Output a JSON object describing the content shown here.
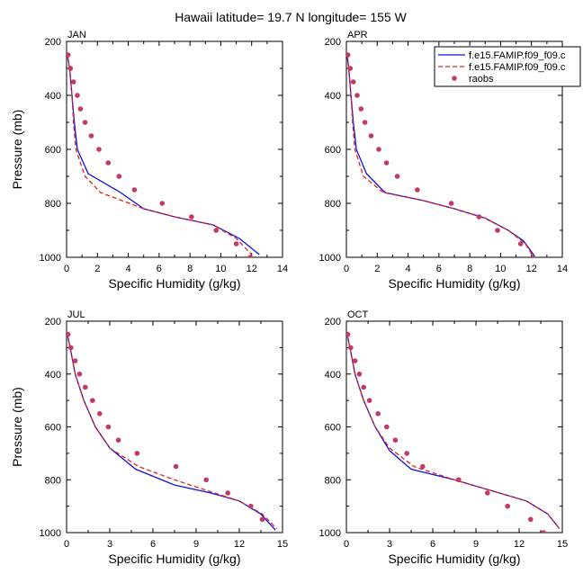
{
  "title": "Hawaii  latitude= 19.7 N longitude= 155 W",
  "legend": {
    "placement": "top-right of APR panel",
    "entries": [
      {
        "label": "f.e15.FAMIP.f09_f09.c",
        "style": "solid",
        "color": "#1010e0"
      },
      {
        "label": "f.e15.FAMIP.f09_f09.c",
        "style": "dashed",
        "color": "#e0241a"
      },
      {
        "label": "raobs",
        "style": "marker",
        "color": "#c2386a"
      }
    ]
  },
  "chart_data": [
    {
      "type": "line",
      "panel_label": "JAN",
      "xlabel": "Specific Humidity (g/kg)",
      "ylabel": "Pressure (mb)",
      "xlim": [
        0,
        14
      ],
      "ylim": [
        1000,
        200
      ],
      "y_inverted": true,
      "xticks": [
        "0",
        "2",
        "4",
        "6",
        "8",
        "10",
        "12",
        "14"
      ],
      "yticks": [
        "200",
        "400",
        "600",
        "800",
        "1000"
      ],
      "series": [
        {
          "style": "solid",
          "color": "#1010e0",
          "x": [
            0.05,
            0.2,
            0.35,
            0.5,
            0.7,
            1.4,
            3.5,
            5.0,
            7.0,
            9.5,
            11.2,
            12.5
          ],
          "y": [
            250,
            300,
            400,
            500,
            600,
            690,
            760,
            820,
            850,
            880,
            930,
            990
          ]
        },
        {
          "style": "dashed",
          "color": "#e0241a",
          "x": [
            0.05,
            0.2,
            0.35,
            0.45,
            0.6,
            1.2,
            2.2,
            5.0,
            7.0,
            9.5,
            11.0,
            12.0
          ],
          "y": [
            250,
            300,
            400,
            500,
            600,
            700,
            760,
            820,
            850,
            880,
            930,
            990
          ]
        },
        {
          "style": "marker",
          "color": "#c2386a",
          "x": [
            0.1,
            0.25,
            0.45,
            0.7,
            0.9,
            1.2,
            1.6,
            2.1,
            2.7,
            3.4,
            4.4,
            6.2,
            8.1,
            9.7,
            11.0,
            11.9
          ],
          "y": [
            250,
            300,
            350,
            400,
            450,
            500,
            550,
            600,
            650,
            700,
            750,
            800,
            850,
            900,
            950,
            1000
          ]
        }
      ]
    },
    {
      "type": "line",
      "panel_label": "APR",
      "xlabel": "Specific Humidity (g/kg)",
      "ylabel": "",
      "xlim": [
        0,
        14
      ],
      "ylim": [
        1000,
        200
      ],
      "y_inverted": true,
      "xticks": [
        "0",
        "2",
        "4",
        "6",
        "8",
        "10",
        "12",
        "14"
      ],
      "yticks": [
        "200",
        "400",
        "600",
        "800",
        "1000"
      ],
      "series": [
        {
          "style": "solid",
          "color": "#1010e0",
          "x": [
            0.05,
            0.15,
            0.3,
            0.45,
            0.65,
            1.3,
            2.5,
            5.0,
            7.0,
            9.0,
            10.5,
            11.5,
            12.2
          ],
          "y": [
            250,
            300,
            400,
            500,
            600,
            690,
            760,
            790,
            820,
            855,
            900,
            940,
            995
          ]
        },
        {
          "style": "dashed",
          "color": "#e0241a",
          "x": [
            0.05,
            0.15,
            0.3,
            0.4,
            0.55,
            1.1,
            2.4,
            5.0,
            7.0,
            9.0,
            10.5,
            11.6,
            12.1
          ],
          "y": [
            250,
            300,
            400,
            500,
            600,
            700,
            760,
            790,
            820,
            855,
            900,
            950,
            995
          ]
        },
        {
          "style": "marker",
          "color": "#c2386a",
          "x": [
            0.1,
            0.25,
            0.45,
            0.7,
            0.95,
            1.2,
            1.6,
            2.1,
            2.6,
            3.3,
            4.6,
            6.8,
            8.6,
            9.8,
            11.3,
            12.1
          ],
          "y": [
            250,
            300,
            350,
            400,
            450,
            500,
            550,
            600,
            650,
            700,
            750,
            800,
            850,
            900,
            950,
            1000
          ]
        }
      ]
    },
    {
      "type": "line",
      "panel_label": "JUL",
      "xlabel": "Specific Humidity (g/kg)",
      "ylabel": "Pressure (mb)",
      "xlim": [
        0,
        15
      ],
      "ylim": [
        1000,
        200
      ],
      "y_inverted": true,
      "xticks": [
        "0",
        "3",
        "6",
        "9",
        "12",
        "15"
      ],
      "yticks": [
        "200",
        "400",
        "600",
        "800",
        "1000"
      ],
      "series": [
        {
          "style": "solid",
          "color": "#1010e0",
          "x": [
            0.05,
            0.25,
            0.6,
            1.2,
            2.0,
            3.0,
            4.8,
            7.5,
            10.0,
            12.0,
            13.5,
            14.5
          ],
          "y": [
            250,
            300,
            400,
            500,
            600,
            680,
            760,
            820,
            850,
            880,
            930,
            990
          ]
        },
        {
          "style": "dashed",
          "color": "#e0241a",
          "x": [
            0.05,
            0.25,
            0.6,
            1.2,
            2.0,
            3.0,
            5.0,
            7.5,
            10.0,
            12.0,
            13.6,
            14.6
          ],
          "y": [
            250,
            300,
            400,
            500,
            600,
            680,
            750,
            800,
            845,
            880,
            930,
            985
          ]
        },
        {
          "style": "marker",
          "color": "#c2386a",
          "x": [
            0.1,
            0.3,
            0.6,
            0.9,
            1.3,
            1.8,
            2.3,
            2.9,
            3.6,
            4.9,
            7.6,
            9.7,
            11.2,
            12.8,
            13.6
          ],
          "y": [
            250,
            300,
            350,
            400,
            450,
            500,
            550,
            600,
            650,
            700,
            750,
            800,
            850,
            900,
            950
          ]
        }
      ]
    },
    {
      "type": "line",
      "panel_label": "OCT",
      "xlabel": "Specific Humidity (g/kg)",
      "ylabel": "",
      "xlim": [
        0,
        15
      ],
      "ylim": [
        1000,
        200
      ],
      "y_inverted": true,
      "xticks": [
        "0",
        "3",
        "6",
        "9",
        "12",
        "15"
      ],
      "yticks": [
        "200",
        "400",
        "600",
        "800",
        "1000"
      ],
      "series": [
        {
          "style": "solid",
          "color": "#1010e0",
          "x": [
            0.05,
            0.25,
            0.6,
            1.2,
            2.0,
            3.0,
            4.5,
            7.5,
            10.0,
            12.5,
            14.0,
            14.8
          ],
          "y": [
            250,
            300,
            400,
            500,
            600,
            690,
            760,
            800,
            840,
            880,
            930,
            985
          ]
        },
        {
          "style": "dashed",
          "color": "#e0241a",
          "x": [
            0.05,
            0.25,
            0.6,
            1.2,
            2.0,
            3.0,
            4.7,
            7.5,
            10.0,
            12.5,
            14.0,
            14.8
          ],
          "y": [
            250,
            300,
            400,
            500,
            600,
            680,
            750,
            800,
            840,
            880,
            930,
            985
          ]
        },
        {
          "style": "marker",
          "color": "#c2386a",
          "x": [
            0.1,
            0.3,
            0.6,
            0.9,
            1.2,
            1.6,
            2.2,
            2.8,
            3.4,
            4.2,
            5.3,
            7.8,
            9.8,
            11.2,
            12.8,
            13.7
          ],
          "y": [
            250,
            300,
            350,
            400,
            450,
            500,
            550,
            600,
            650,
            700,
            750,
            800,
            850,
            900,
            950,
            1000
          ]
        }
      ]
    }
  ]
}
